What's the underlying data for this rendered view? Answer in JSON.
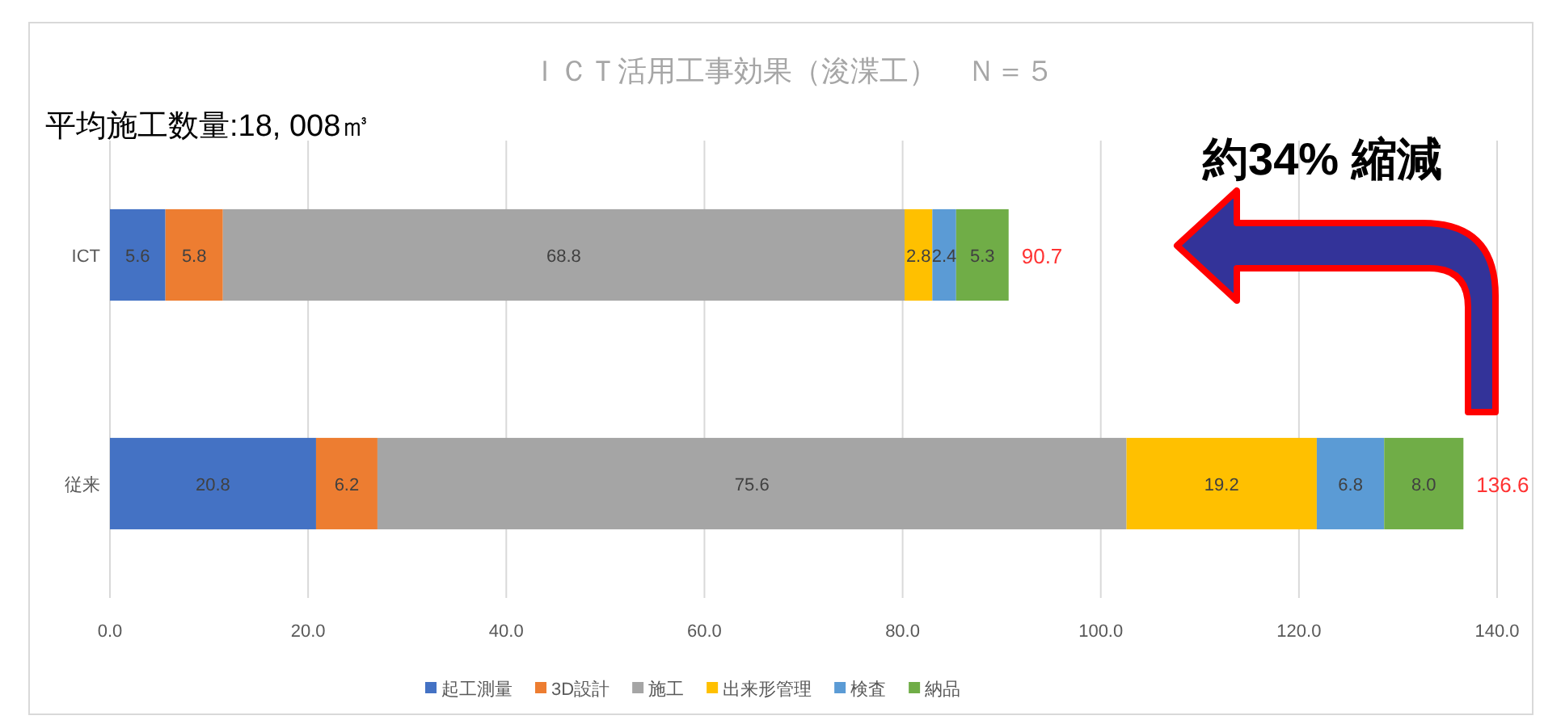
{
  "chart_data": {
    "type": "bar",
    "orientation": "horizontal",
    "stacked": true,
    "title": "ＩＣＴ活用工事効果（浚渫工）　Ｎ＝５",
    "annotations": [
      "平均施工数量:18, 008㎥",
      "約34% 縮減"
    ],
    "categories": [
      "ICT",
      "従来"
    ],
    "series": [
      {
        "name": "起工測量",
        "color": "#4472c4",
        "values": [
          5.6,
          20.8
        ],
        "value_labels": [
          "5.6",
          "20.8"
        ]
      },
      {
        "name": "3D設計",
        "color": "#ed7d31",
        "values": [
          5.8,
          6.2
        ],
        "value_labels": [
          "5.8",
          "6.2"
        ]
      },
      {
        "name": "施工",
        "color": "#a5a5a5",
        "values": [
          68.8,
          75.6
        ],
        "value_labels": [
          "68.8",
          "75.6"
        ]
      },
      {
        "name": "出来形管理",
        "color": "#ffc000",
        "values": [
          2.8,
          19.2
        ],
        "value_labels": [
          "2.8",
          "19.2"
        ]
      },
      {
        "name": "検査",
        "color": "#5b9bd5",
        "values": [
          2.4,
          6.8
        ],
        "value_labels": [
          "2.4",
          "6.8"
        ]
      },
      {
        "name": "納品",
        "color": "#70ad47",
        "values": [
          5.3,
          8.0
        ],
        "value_labels": [
          "5.3",
          "8.0"
        ]
      }
    ],
    "totals": [
      "90.7",
      "136.6"
    ],
    "xlim": [
      0,
      140
    ],
    "xticks": [
      {
        "value": 0,
        "label": "0.0"
      },
      {
        "value": 20,
        "label": "20.0"
      },
      {
        "value": 40,
        "label": "40.0"
      },
      {
        "value": 60,
        "label": "60.0"
      },
      {
        "value": 80,
        "label": "80.0"
      },
      {
        "value": 100,
        "label": "100.0"
      },
      {
        "value": 120,
        "label": "120.0"
      },
      {
        "value": 140,
        "label": "140.0"
      }
    ],
    "grid": "x",
    "legend": "bottom"
  }
}
